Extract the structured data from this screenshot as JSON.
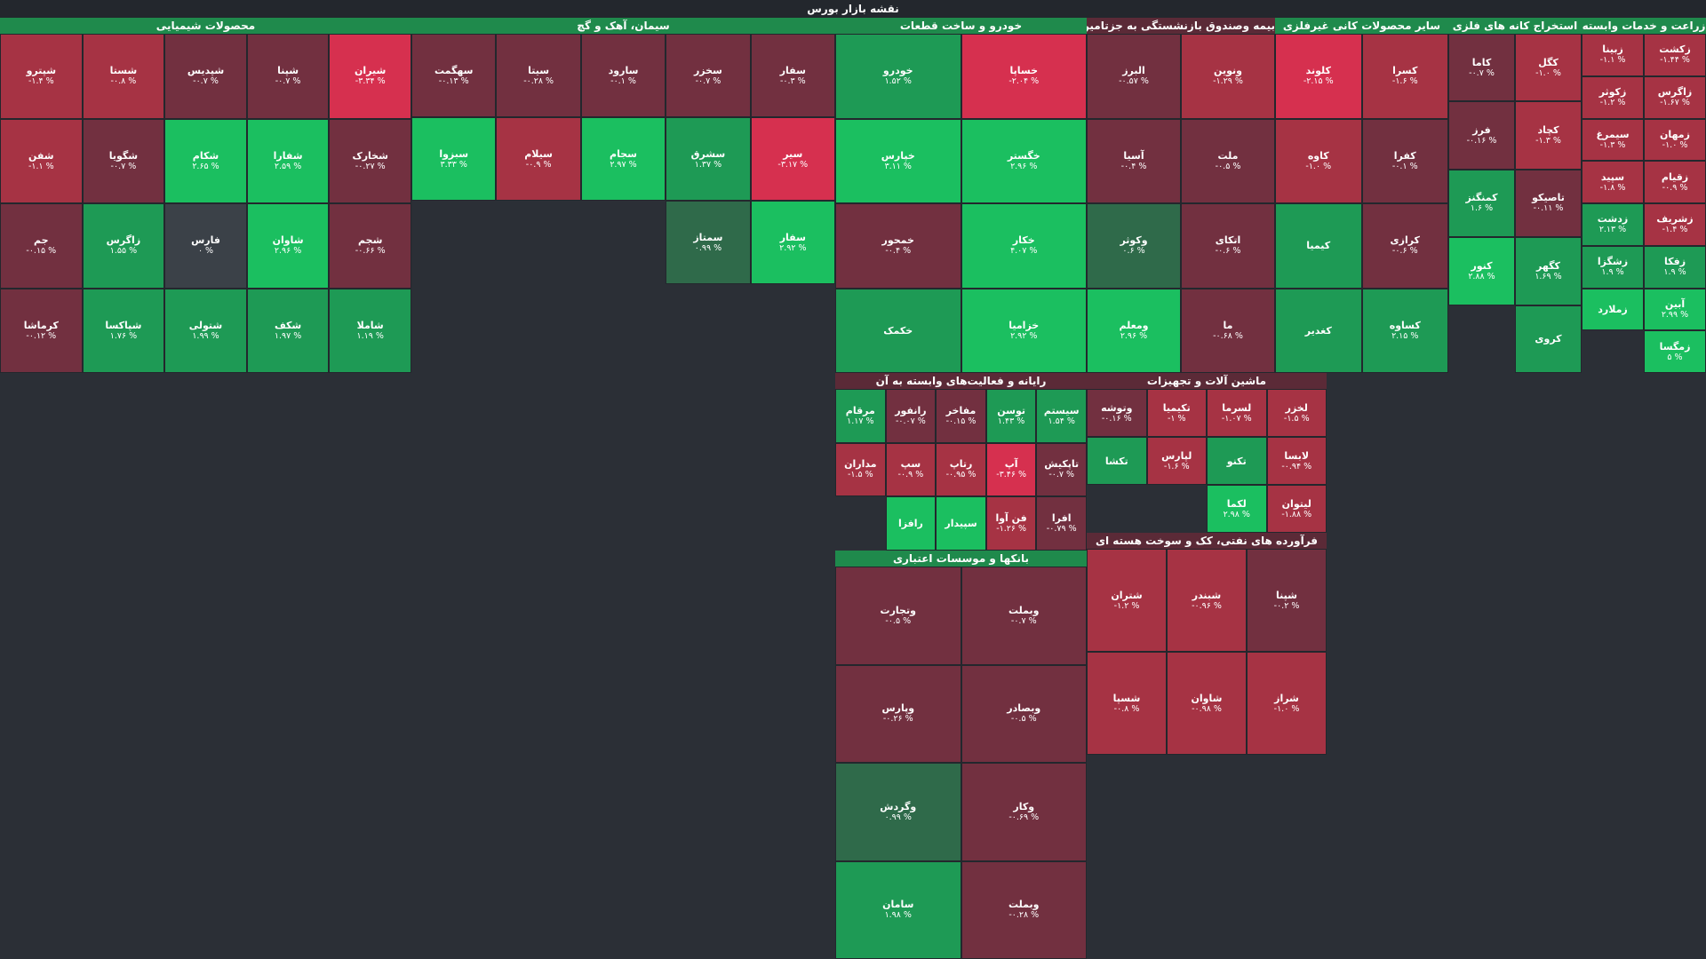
{
  "title": "نقشه بازار بورس",
  "colors": {
    "down_strong": "#d6304f",
    "down": "#a63344",
    "down_weak": "#723040",
    "flat": "#3b4148",
    "up_weak": "#2f6a4a",
    "up": "#1e9a55",
    "up_strong": "#1bbf60"
  },
  "chart_data": {
    "type": "heatmap",
    "title": "نقشه بازار بورس",
    "sectors": [
      {
        "name": "زراعت و خدمات وابسته",
        "tiles": [
          {
            "name": "زکشت",
            "change": "-۱.۴۴ %",
            "v": -1.44
          },
          {
            "name": "زبینا",
            "change": "-۱.۱ %",
            "v": -1.1
          },
          {
            "name": "زاگرس",
            "change": "-۱.۶۷ %",
            "v": -1.67
          },
          {
            "name": "زکوثر",
            "change": "-۱.۲ %",
            "v": -1.2
          },
          {
            "name": "زمهان",
            "change": "-۱.۰ %",
            "v": -1.0
          },
          {
            "name": "سیمرغ",
            "change": "-۱.۳ %",
            "v": -1.3
          },
          {
            "name": "زقیام",
            "change": "-۰.۹ %",
            "v": -0.9
          },
          {
            "name": "سپید",
            "change": "-۱.۸ %",
            "v": -1.8
          },
          {
            "name": "زشریف",
            "change": "-۱.۴ %",
            "v": -1.4
          },
          {
            "name": "زدشت",
            "change": "۲.۱۳ %",
            "v": 2.13
          },
          {
            "name": "زفکا",
            "change": "۱.۹ %",
            "v": 1.9
          },
          {
            "name": "زشگزا",
            "change": "۱.۹ %",
            "v": 1.9
          },
          {
            "name": "آبین",
            "change": "۲.۹۹ %",
            "v": 2.99
          },
          {
            "name": "زملارد",
            "change": "",
            "v": 2.5
          },
          {
            "name": "زمگسا",
            "change": "۵ %",
            "v": 5
          }
        ]
      },
      {
        "name": "استخراج کانه های فلزی",
        "tiles": [
          {
            "name": "کگل",
            "change": "-۱.۰ %",
            "v": -1.0
          },
          {
            "name": "کاما",
            "change": "-۰.۷ %",
            "v": -0.7
          },
          {
            "name": "کچاد",
            "change": "-۱.۳ %",
            "v": -1.3
          },
          {
            "name": "فرز",
            "change": "-۰.۱۶ %",
            "v": -0.16
          },
          {
            "name": "تاصیکو",
            "change": "-۰.۱۱ %",
            "v": -0.11
          },
          {
            "name": "کمنگنز",
            "change": "۱.۶ %",
            "v": 1.6
          },
          {
            "name": "کگهر",
            "change": "۱.۶۹ %",
            "v": 1.69
          },
          {
            "name": "کنور",
            "change": "۲.۸۸ %",
            "v": 2.88
          },
          {
            "name": "کروی",
            "change": "",
            "v": 2.0
          }
        ]
      },
      {
        "name": "سایر محصولات کانی غیرفلزی",
        "tiles": [
          {
            "name": "کسرا",
            "change": "-۱.۶ %",
            "v": -1.6
          },
          {
            "name": "کلوند",
            "change": "-۲.۱۵ %",
            "v": -2.15
          },
          {
            "name": "کفرا",
            "change": "-۰.۱ %",
            "v": -0.1
          },
          {
            "name": "کاوه",
            "change": "-۱.۰ %",
            "v": -1.0
          },
          {
            "name": "کرازی",
            "change": "-۰.۶ %",
            "v": -0.6
          },
          {
            "name": "کیمیا",
            "change": "",
            "v": 2.0
          },
          {
            "name": "کساوه",
            "change": "۲.۱۵ %",
            "v": 2.15
          },
          {
            "name": "کغدیر",
            "change": "",
            "v": 1.5
          }
        ]
      },
      {
        "name": "بیمه وصندوق بازنشستگی به جزتامین",
        "tiles": [
          {
            "name": "ونوین",
            "change": "-۱.۲۹ %",
            "v": -1.29
          },
          {
            "name": "البرز",
            "change": "-۰.۵۷ %",
            "v": -0.57
          },
          {
            "name": "ملت",
            "change": "-۰.۵ %",
            "v": -0.5
          },
          {
            "name": "آسیا",
            "change": "-۰.۴ %",
            "v": -0.4
          },
          {
            "name": "اتکای",
            "change": "-۰.۶ %",
            "v": -0.6
          },
          {
            "name": "وکوثر",
            "change": "۰.۶ %",
            "v": 0.6
          },
          {
            "name": "ما",
            "change": "-۰.۶۸ %",
            "v": -0.68
          },
          {
            "name": "ومعلم",
            "change": "۲.۹۶ %",
            "v": 2.96
          }
        ]
      },
      {
        "name": "خودرو و ساخت قطعات",
        "tiles": [
          {
            "name": "خساپا",
            "change": "-۲.۰۴ %",
            "v": -2.04
          },
          {
            "name": "خودرو",
            "change": "۱.۵۲ %",
            "v": 1.52
          },
          {
            "name": "خگستر",
            "change": "۲.۹۶ %",
            "v": 2.96
          },
          {
            "name": "خپارس",
            "change": "۳.۱۱ %",
            "v": 3.11
          },
          {
            "name": "خکار",
            "change": "۴.۰۷ %",
            "v": 4.07
          },
          {
            "name": "خمحور",
            "change": "-۰.۴ %",
            "v": -0.4
          },
          {
            "name": "خزامیا",
            "change": "۲.۹۲ %",
            "v": 2.92
          },
          {
            "name": "خکمک",
            "change": "",
            "v": 2.0
          }
        ]
      },
      {
        "name": "سیمان، آهک و گچ",
        "tiles": [
          {
            "name": "سفار",
            "change": "-۰.۳ %",
            "v": -0.3
          },
          {
            "name": "سخزر",
            "change": "-۰.۷ %",
            "v": -0.7
          },
          {
            "name": "سارود",
            "change": "-۰.۱ %",
            "v": -0.1
          },
          {
            "name": "سیتا",
            "change": "-۰.۲۸ %",
            "v": -0.28
          },
          {
            "name": "سهگمت",
            "change": "-۰.۱۳ %",
            "v": -0.13
          },
          {
            "name": "سیر",
            "change": "-۳.۱۷ %",
            "v": -3.17
          },
          {
            "name": "سشرق",
            "change": "۱.۳۷ %",
            "v": 1.37
          },
          {
            "name": "سجام",
            "change": "۲.۹۷ %",
            "v": 2.97
          },
          {
            "name": "سیلام",
            "change": "-۰.۹ %",
            "v": -0.9
          },
          {
            "name": "سبزوا",
            "change": "۳.۳۳ %",
            "v": 3.33
          },
          {
            "name": "سفار",
            "change": "۲.۹۲ %",
            "v": 2.92
          },
          {
            "name": "سمتاز",
            "change": "۰.۹۹ %",
            "v": 0.99
          }
        ]
      },
      {
        "name": "محصولات شیمیایی",
        "tiles": [
          {
            "name": "شیران",
            "change": "-۳.۳۴ %",
            "v": -3.34
          },
          {
            "name": "شپنا",
            "change": "-۰.۷ %",
            "v": -0.7
          },
          {
            "name": "شپدیس",
            "change": "-۰.۷ %",
            "v": -0.7
          },
          {
            "name": "شستا",
            "change": "-۰.۸ %",
            "v": -0.8
          },
          {
            "name": "شپترو",
            "change": "-۱.۴ %",
            "v": -1.4
          },
          {
            "name": "شخارک",
            "change": "-۰.۲۷ %",
            "v": -0.27
          },
          {
            "name": "شفارا",
            "change": "۲.۵۹ %",
            "v": 2.59
          },
          {
            "name": "شکام",
            "change": "۲.۶۵ %",
            "v": 2.65
          },
          {
            "name": "شگویا",
            "change": "-۰.۷ %",
            "v": -0.7
          },
          {
            "name": "شفن",
            "change": "-۱.۱ %",
            "v": -1.1
          },
          {
            "name": "شجم",
            "change": "-۰.۶۶ %",
            "v": -0.66
          },
          {
            "name": "شاوان",
            "change": "۲.۹۶ %",
            "v": 2.96
          },
          {
            "name": "فارس",
            "change": "۰ %",
            "v": 0
          },
          {
            "name": "زاگرس",
            "change": "۱.۵۵ %",
            "v": 1.55
          },
          {
            "name": "جم",
            "change": "-۰.۱۵ %",
            "v": -0.15
          },
          {
            "name": "شاملا",
            "change": "۱.۱۹ %",
            "v": 1.19
          },
          {
            "name": "شکف",
            "change": "۱.۹۷ %",
            "v": 1.97
          },
          {
            "name": "شتولی",
            "change": "۱.۹۹ %",
            "v": 1.99
          },
          {
            "name": "شپاکسا",
            "change": "۱.۷۶ %",
            "v": 1.76
          },
          {
            "name": "کرماشا",
            "change": "-۰.۱۲ %",
            "v": -0.12
          }
        ]
      },
      {
        "name": "رایانه و فعالیت‌های وابسته به آن",
        "tiles": [
          {
            "name": "سیستم",
            "change": "۱.۵۴ %",
            "v": 1.54
          },
          {
            "name": "توسن",
            "change": "۱.۴۳ %",
            "v": 1.43
          },
          {
            "name": "مفاخر",
            "change": "-۰.۱۵ %",
            "v": -0.15
          },
          {
            "name": "رانفور",
            "change": "-۰.۰۷ %",
            "v": -0.07
          },
          {
            "name": "مرقام",
            "change": "۱.۱۷ %",
            "v": 1.17
          },
          {
            "name": "تاپکیش",
            "change": "-۰.۷ %",
            "v": -0.7
          },
          {
            "name": "آپ",
            "change": "-۳.۴۶ %",
            "v": -3.46
          },
          {
            "name": "رتاپ",
            "change": "-۰.۹۵ %",
            "v": -0.95
          },
          {
            "name": "سپ",
            "change": "-۰.۹ %",
            "v": -0.9
          },
          {
            "name": "مداران",
            "change": "-۱.۵ %",
            "v": -1.5
          },
          {
            "name": "افرا",
            "change": "-۰.۷۹ %",
            "v": -0.79
          },
          {
            "name": "فن آوا",
            "change": "-۱.۲۶ %",
            "v": -1.26
          },
          {
            "name": "سپیدار",
            "change": "",
            "v": 2.5
          },
          {
            "name": "رافزا",
            "change": "",
            "v": 2.5
          }
        ]
      },
      {
        "name": "ماشین آلات و تجهیزات",
        "tiles": [
          {
            "name": "لخزر",
            "change": "-۱.۵ %",
            "v": -1.5
          },
          {
            "name": "لسرما",
            "change": "-۱.۰۷ %",
            "v": -1.07
          },
          {
            "name": "تکیمیا",
            "change": "-۱ %",
            "v": -1
          },
          {
            "name": "وتوشه",
            "change": "-۰.۱۶ %",
            "v": -0.16
          },
          {
            "name": "لابسا",
            "change": "-۰.۹۴ %",
            "v": -0.94
          },
          {
            "name": "تکنو",
            "change": "",
            "v": 2.0
          },
          {
            "name": "لپارس",
            "change": "-۱.۶ %",
            "v": -1.6
          },
          {
            "name": "تکشا",
            "change": "",
            "v": 2.2
          },
          {
            "name": "لیتوان",
            "change": "-۱.۸۸ %",
            "v": -1.88
          },
          {
            "name": "لکما",
            "change": "۲.۹۸ %",
            "v": 2.98
          }
        ]
      },
      {
        "name": "فرآورده های نفتی، کک و سوخت هسته ای",
        "tiles": [
          {
            "name": "شپنا",
            "change": "-۰.۲ %",
            "v": -0.2
          },
          {
            "name": "شبندر",
            "change": "-۰.۹۶ %",
            "v": -0.96
          },
          {
            "name": "شتران",
            "change": "-۱.۲ %",
            "v": -1.2
          },
          {
            "name": "شراز",
            "change": "-۱.۰ %",
            "v": -1.0
          },
          {
            "name": "شاوان",
            "change": "-۰.۹۸ %",
            "v": -0.98
          },
          {
            "name": "شسپا",
            "change": "-۰.۸ %",
            "v": -0.8
          }
        ]
      },
      {
        "name": "بانکها و موسسات اعتباری",
        "tiles": [
          {
            "name": "وبملت",
            "change": "-۰.۷ %",
            "v": -0.7
          },
          {
            "name": "وتجارت",
            "change": "-۰.۵ %",
            "v": -0.5
          },
          {
            "name": "وبصادر",
            "change": "-۰.۵ %",
            "v": -0.5
          },
          {
            "name": "وپارس",
            "change": "-۰.۲۶ %",
            "v": -0.26
          },
          {
            "name": "وکار",
            "change": "-۰.۶۹ %",
            "v": -0.69
          },
          {
            "name": "وگردش",
            "change": "۰.۹۹ %",
            "v": 0.99
          },
          {
            "name": "وبملت",
            "change": "-۰.۲۸ %",
            "v": -0.28
          },
          {
            "name": "سامان",
            "change": "۱.۹۸ %",
            "v": 1.98
          }
        ]
      }
    ]
  }
}
